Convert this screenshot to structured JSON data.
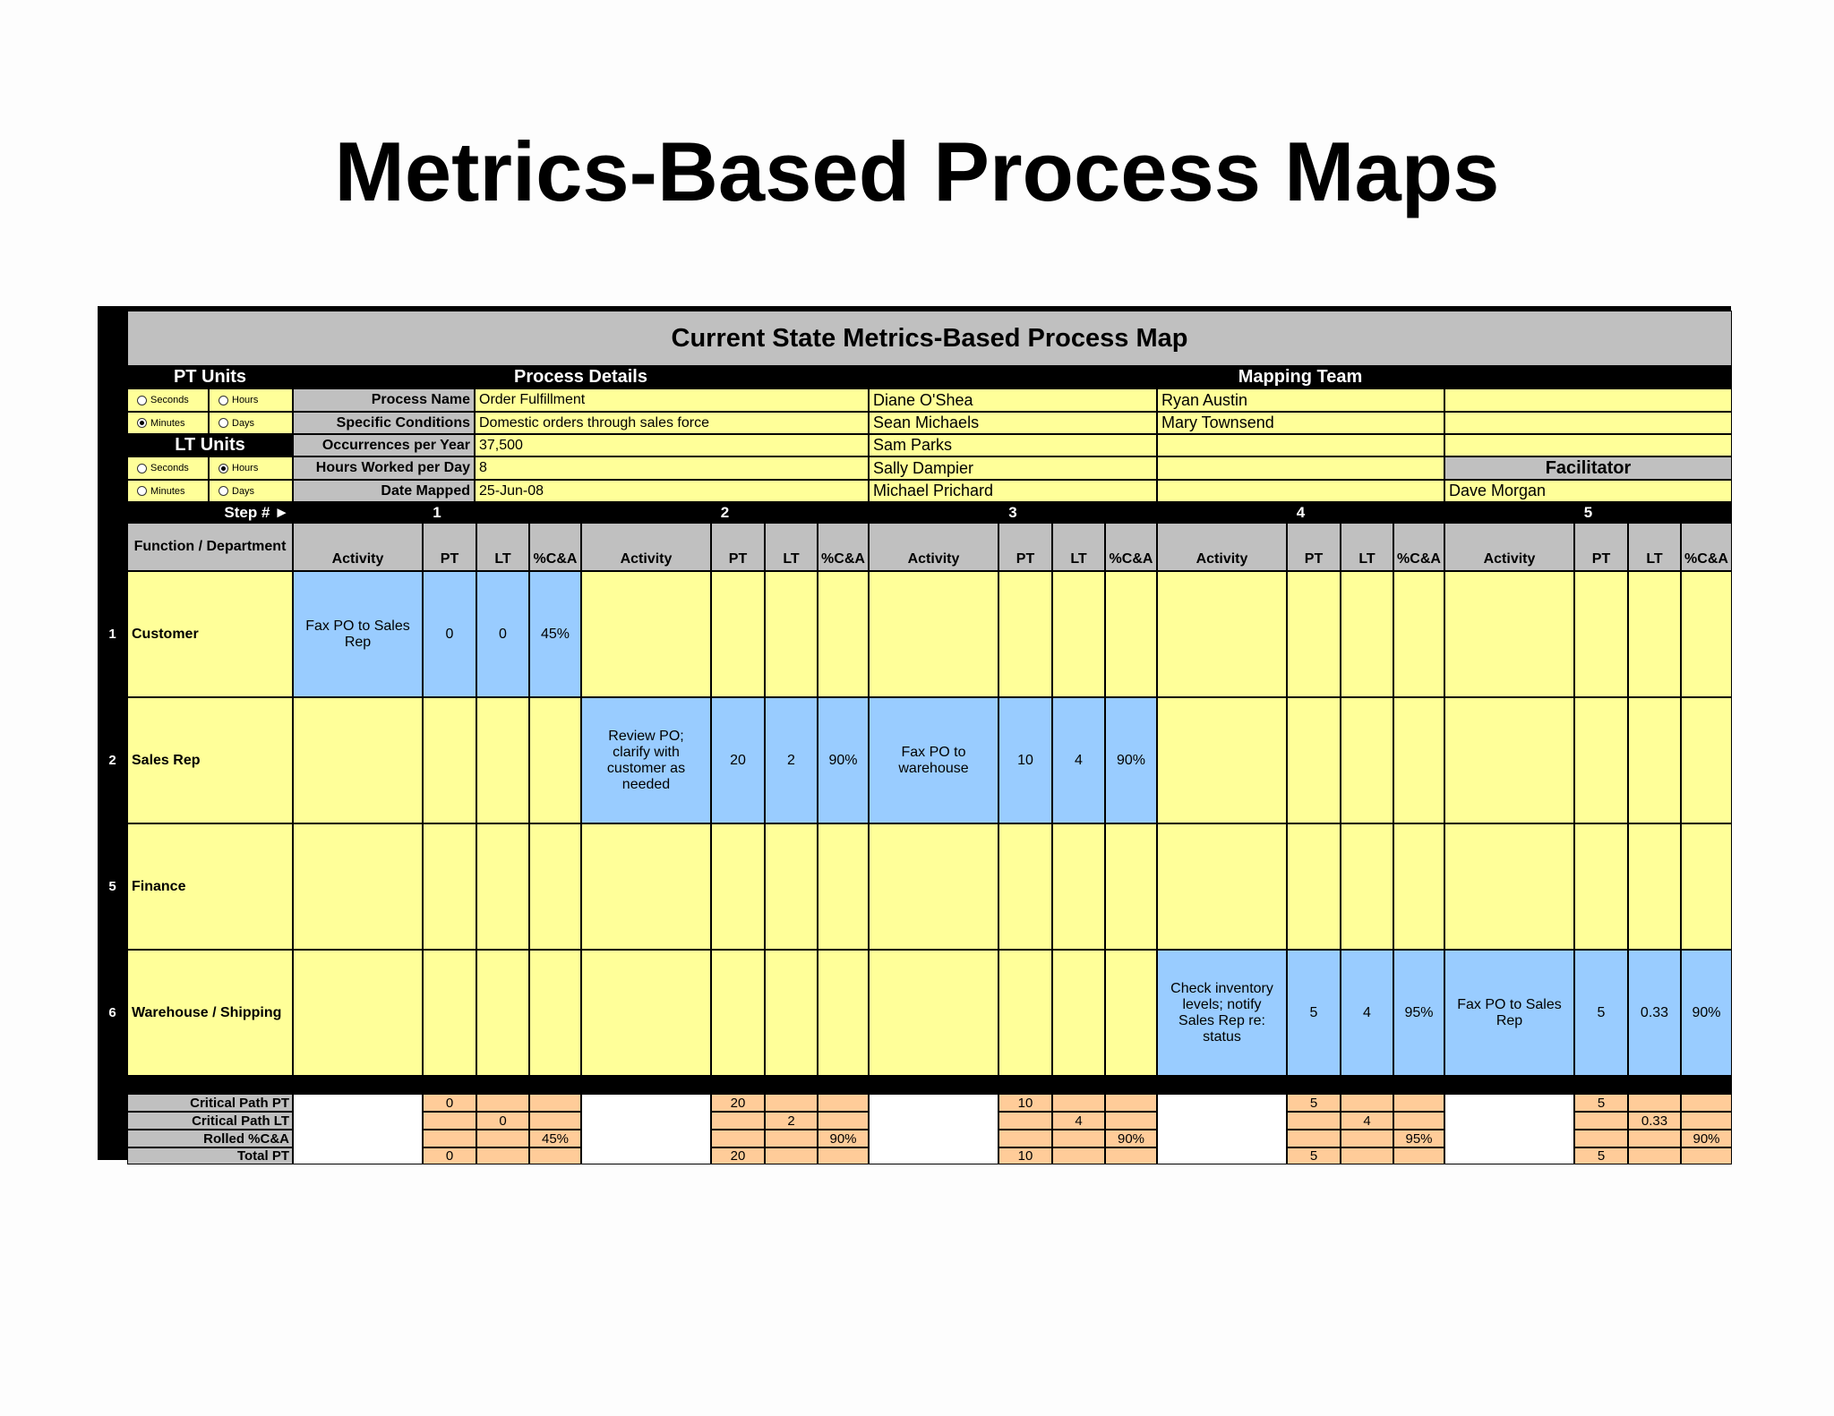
{
  "page_title": "Metrics-Based Process Maps",
  "sheet_title": "Current State Metrics-Based Process Map",
  "pt_units": {
    "title": "PT Units",
    "options": [
      {
        "label": "Seconds",
        "selected": false
      },
      {
        "label": "Hours",
        "selected": false
      },
      {
        "label": "Minutes",
        "selected": true
      },
      {
        "label": "Days",
        "selected": false
      }
    ]
  },
  "lt_units": {
    "title": "LT Units",
    "options": [
      {
        "label": "Seconds",
        "selected": false
      },
      {
        "label": "Hours",
        "selected": true
      },
      {
        "label": "Minutes",
        "selected": false
      },
      {
        "label": "Days",
        "selected": false
      }
    ]
  },
  "process_details": {
    "title": "Process Details",
    "rows": [
      {
        "label": "Process Name",
        "value": "Order Fulfillment"
      },
      {
        "label": "Specific Conditions",
        "value": "Domestic orders through sales force"
      },
      {
        "label": "Occurrences per Year",
        "value": "37,500"
      },
      {
        "label": "Hours Worked per Day",
        "value": "8"
      },
      {
        "label": "Date Mapped",
        "value": "25-Jun-08"
      }
    ]
  },
  "mapping_team": {
    "title": "Mapping Team",
    "col1": [
      "Diane O'Shea",
      "Sean Michaels",
      "Sam Parks",
      "Sally Dampier",
      "Michael Prichard"
    ],
    "col2": [
      "Ryan Austin",
      "Mary Townsend",
      "",
      "",
      ""
    ],
    "facilitator_label": "Facilitator",
    "facilitator": "Dave Morgan"
  },
  "step_label": "Step # ►",
  "steps": [
    "1",
    "2",
    "3",
    "4",
    "5"
  ],
  "function_header": "Function / Department",
  "col_headers": {
    "activity": "Activity",
    "pt": "PT",
    "lt": "LT",
    "ca": "%C&A"
  },
  "functions": [
    {
      "num": "1",
      "name": "Customer"
    },
    {
      "num": "2",
      "name": "Sales Rep"
    },
    {
      "num": "5",
      "name": "Finance"
    },
    {
      "num": "6",
      "name": "Warehouse / Shipping"
    }
  ],
  "activities": [
    {
      "step": 0,
      "row": 0,
      "activity": "Fax PO to Sales Rep",
      "pt": "0",
      "lt": "0",
      "ca": "45%"
    },
    {
      "step": 1,
      "row": 1,
      "activity": "Review PO; clarify with customer as needed",
      "pt": "20",
      "lt": "2",
      "ca": "90%"
    },
    {
      "step": 2,
      "row": 1,
      "activity": "Fax PO to warehouse",
      "pt": "10",
      "lt": "4",
      "ca": "90%"
    },
    {
      "step": 3,
      "row": 3,
      "activity": "Check inventory levels; notify Sales Rep re: status",
      "pt": "5",
      "lt": "4",
      "ca": "95%"
    },
    {
      "step": 4,
      "row": 3,
      "activity": "Fax PO to Sales Rep",
      "pt": "5",
      "lt": "0.33",
      "ca": "90%"
    }
  ],
  "summary": {
    "labels": [
      "Critical Path PT",
      "Critical Path LT",
      "Rolled %C&A",
      "Total PT"
    ],
    "steps": [
      {
        "cp_pt": "0",
        "cp_lt": "0",
        "rolled": "45%",
        "total": "0"
      },
      {
        "cp_pt": "20",
        "cp_lt": "2",
        "rolled": "90%",
        "total": "20"
      },
      {
        "cp_pt": "10",
        "cp_lt": "4",
        "rolled": "90%",
        "total": "10"
      },
      {
        "cp_pt": "5",
        "cp_lt": "4",
        "rolled": "95%",
        "total": "5"
      },
      {
        "cp_pt": "5",
        "cp_lt": "0.33",
        "rolled": "90%",
        "total": "5"
      }
    ]
  },
  "colors": {
    "cell_yellow": "#ffff99",
    "cell_blue": "#99ccff",
    "cell_orange": "#ffcc99",
    "header_gray": "#c0c0c0",
    "bar_black": "#000000"
  }
}
